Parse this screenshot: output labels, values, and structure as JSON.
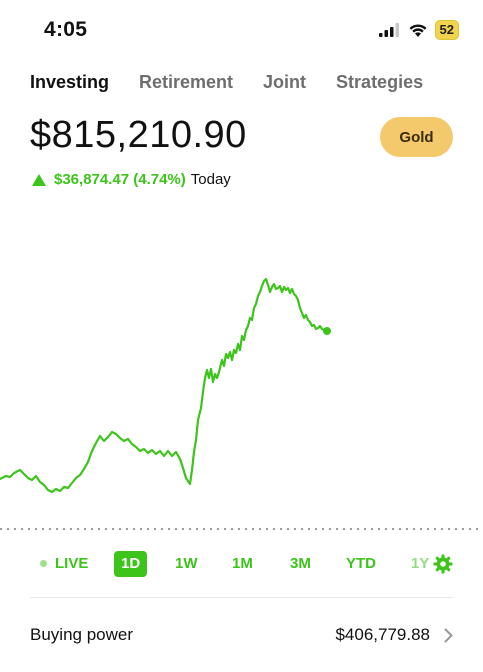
{
  "status": {
    "time": "4:05",
    "battery": "52"
  },
  "tabs": [
    {
      "label": "Investing",
      "active": true
    },
    {
      "label": "Retirement",
      "active": false
    },
    {
      "label": "Joint",
      "active": false
    },
    {
      "label": "Strategies",
      "active": false
    }
  ],
  "portfolio": {
    "value": "$815,210.90",
    "change": "$36,874.47 (4.74%)",
    "change_period": "Today",
    "trend": "up"
  },
  "gold_button": "Gold",
  "chart": {
    "line_color": "#3cc41a",
    "baseline_style": "dotted",
    "current_point": true
  },
  "ranges": [
    {
      "label": "LIVE",
      "active": false
    },
    {
      "label": "1D",
      "active": true
    },
    {
      "label": "1W",
      "active": false
    },
    {
      "label": "1M",
      "active": false
    },
    {
      "label": "3M",
      "active": false
    },
    {
      "label": "YTD",
      "active": false
    },
    {
      "label": "1Y",
      "active": false
    }
  ],
  "icons": {
    "settings": "gear-icon",
    "chevron": "chevron-right-icon"
  },
  "buying_power": {
    "label": "Buying power",
    "value": "$406,779.88"
  },
  "colors": {
    "accent": "#3cc41a",
    "gold": "#f3c96b",
    "battery": "#f2d34d"
  }
}
